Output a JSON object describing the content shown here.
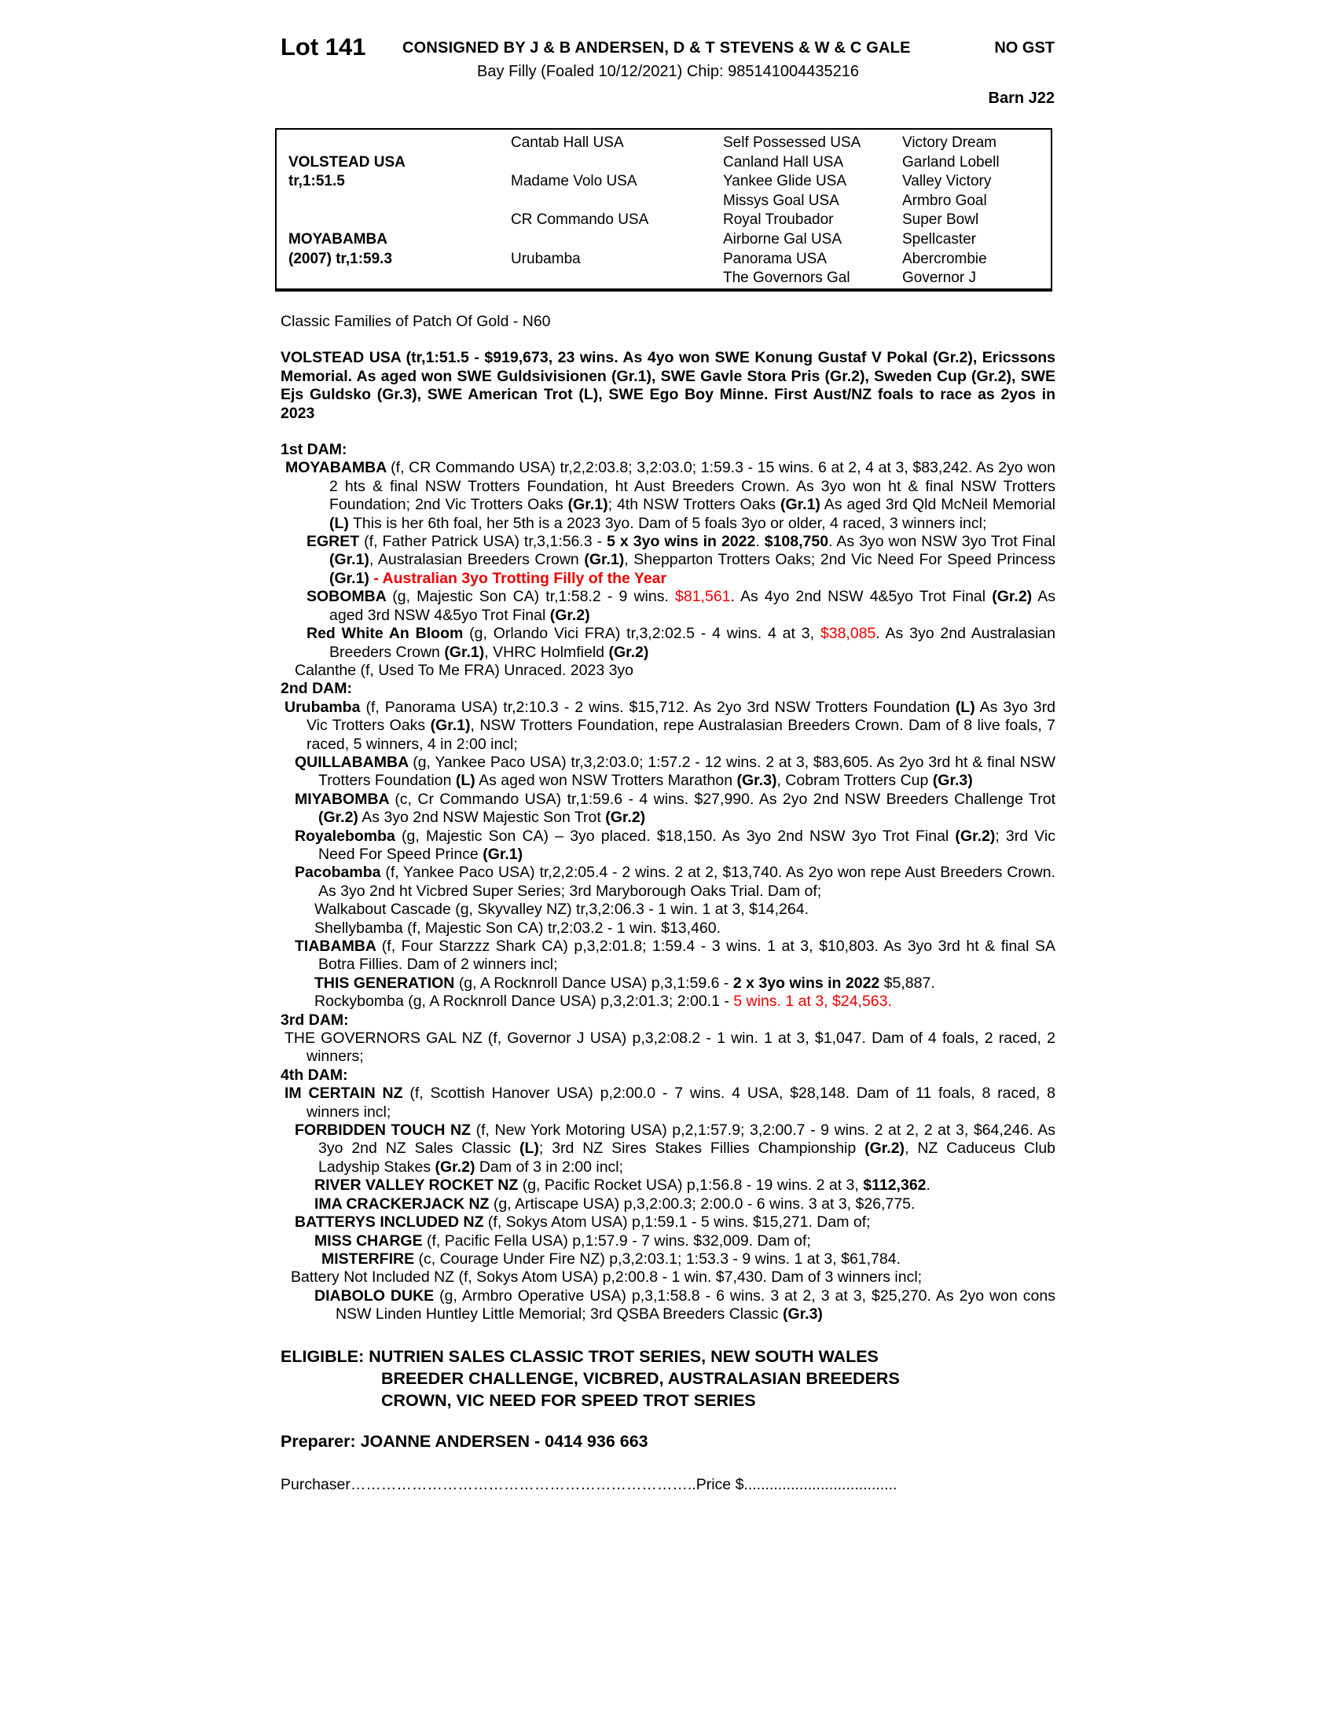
{
  "colors": {
    "highlight": "#ee0000",
    "ink": "#000000",
    "paper": "#ffffff"
  },
  "header": {
    "lot": "Lot 141",
    "consignor": "CONSIGNED BY J & B ANDERSEN, D & T STEVENS & W  & C GALE",
    "gst": "NO GST",
    "description": "Bay Filly (Foaled 10/12/2021) Chip: 985141004435216",
    "barn": "Barn J22"
  },
  "pedigree_table": {
    "rows": [
      [
        "",
        "Cantab Hall USA",
        "Self Possessed USA",
        "Victory Dream"
      ],
      [
        "VOLSTEAD USA",
        "",
        "Canland Hall USA",
        "Garland Lobell"
      ],
      [
        "tr,1:51.5",
        "Madame Volo USA",
        "Yankee Glide USA",
        "Valley Victory"
      ],
      [
        "",
        "",
        "Missys Goal USA",
        "Armbro Goal"
      ],
      [
        "",
        "CR Commando USA",
        "Royal Troubador",
        "Super Bowl"
      ],
      [
        "MOYABAMBA",
        "",
        "Airborne Gal USA",
        "Spellcaster"
      ],
      [
        "(2007) tr,1:59.3",
        "Urubamba",
        "Panorama USA",
        "Abercrombie"
      ],
      [
        "",
        "",
        "The Governors Gal",
        "Governor J"
      ]
    ]
  },
  "body": [
    {
      "cls": "p-plain",
      "seg": [
        {
          "t": "Classic Families of Patch Of Gold - N60"
        }
      ]
    },
    {
      "cls": "p-sire",
      "seg": [
        {
          "t": "VOLSTEAD USA (tr,1:51.5 - $919,673, 23 wins. As 4yo won SWE Konung Gustaf V Pokal (Gr.2), Ericssons Memorial. As aged won SWE Guldsivisionen (Gr.1), SWE Gavle Stora Pris (Gr.2), Sweden Cup (Gr.2), SWE Ejs Guldsko (Gr.3), SWE American Trot (L), SWE Ego Boy Minne. First Aust/NZ foals to race as 2yos in 2023"
        }
      ]
    },
    {
      "cls": "h-dam first",
      "seg": [
        {
          "t": "1st DAM:"
        }
      ]
    },
    {
      "cls": "p-dam1",
      "seg": [
        {
          "t": "MOYABAMBA ",
          "s": "b"
        },
        {
          "t": "(f, CR Commando USA) tr,2,2:03.8; 3,2:03.0; 1:59.3 - 15 wins. 6 at 2, 4 at 3, $83,242. As 2yo won 2 hts & final NSW Trotters Foundation, ht Aust Breeders Crown. As 3yo won ht & final NSW Trotters Foundation; 2nd Vic Trotters Oaks "
        },
        {
          "t": "(Gr.1)",
          "s": "b"
        },
        {
          "t": "; 4th NSW Trotters Oaks "
        },
        {
          "t": "(Gr.1)",
          "s": "b"
        },
        {
          "t": " As aged 3rd Qld McNeil Memorial "
        },
        {
          "t": "(L)",
          "s": "b"
        },
        {
          "t": " This is her 6th foal, her 5th is a 2023 3yo. Dam of 5 foals 3yo or older, 4 raced, 3 winners incl;"
        }
      ]
    },
    {
      "cls": "p-sub",
      "seg": [
        {
          "t": "EGRET ",
          "s": "b"
        },
        {
          "t": "(f, Father Patrick USA) tr,3,1:56.3 - "
        },
        {
          "t": "5 x 3yo wins in 2022",
          "s": "b"
        },
        {
          "t": ". "
        },
        {
          "t": "$108,750",
          "s": "b"
        },
        {
          "t": ". As 3yo won NSW 3yo Trot Final "
        },
        {
          "t": "(Gr.1)",
          "s": "b"
        },
        {
          "t": ", Australasian Breeders Crown "
        },
        {
          "t": "(Gr.1)",
          "s": "b"
        },
        {
          "t": ", Shepparton Trotters Oaks; 2nd Vic Need For Speed Princess "
        },
        {
          "t": "(Gr.1)",
          "s": "b"
        },
        {
          "t": " "
        },
        {
          "t": "- Australian 3yo Trotting Filly of the Year",
          "s": "rb"
        }
      ]
    },
    {
      "cls": "p-sub",
      "seg": [
        {
          "t": "SOBOMBA ",
          "s": "b"
        },
        {
          "t": "(g, Majestic Son CA) tr,1:58.2 - 9 wins. "
        },
        {
          "t": "$81,561",
          "s": "r"
        },
        {
          "t": ". As 4yo 2nd NSW 4&5yo Trot Final "
        },
        {
          "t": "(Gr.2)",
          "s": "b"
        },
        {
          "t": " As aged 3rd NSW 4&5yo Trot Final "
        },
        {
          "t": "(Gr.2)",
          "s": "b"
        }
      ]
    },
    {
      "cls": "p-sub",
      "seg": [
        {
          "t": "Red White An Bloom ",
          "s": "b"
        },
        {
          "t": "(g, Orlando Vici FRA) tr,3,2:02.5 - 4 wins. 4 at 3, "
        },
        {
          "t": "$38,085",
          "s": "r"
        },
        {
          "t": ". As 3yo 2nd Australasian Breeders Crown "
        },
        {
          "t": "(Gr.1)",
          "s": "b"
        },
        {
          "t": ", VHRC Holmfield "
        },
        {
          "t": "(Gr.2)",
          "s": "b"
        }
      ]
    },
    {
      "cls": "p-cal",
      "seg": [
        {
          "t": "Calanthe (f, Used To Me FRA) Unraced. 2023 3yo"
        }
      ]
    },
    {
      "cls": "h-dam",
      "seg": [
        {
          "t": "2nd DAM:"
        }
      ]
    },
    {
      "cls": "p-dam2",
      "seg": [
        {
          "t": "Urubamba ",
          "s": "b"
        },
        {
          "t": "(f, Panorama USA) tr,2:10.3 - 2 wins. $15,712. As 2yo 3rd NSW Trotters Foundation "
        },
        {
          "t": "(L)",
          "s": "b"
        },
        {
          "t": " As 3yo 3rd Vic Trotters Oaks "
        },
        {
          "t": "(Gr.1)",
          "s": "b"
        },
        {
          "t": ", NSW Trotters Foundation, repe Australasian Breeders Crown. Dam of 8 live foals, 7 raced, 5 winners, 4 in 2:00 incl;"
        }
      ]
    },
    {
      "cls": "p-sub2",
      "seg": [
        {
          "t": "QUILLABAMBA ",
          "s": "b"
        },
        {
          "t": "(g, Yankee Paco USA) tr,3,2:03.0; 1:57.2 - 12 wins. 2 at 3, $83,605. As 2yo 3rd ht & final NSW Trotters Foundation "
        },
        {
          "t": "(L)",
          "s": "b"
        },
        {
          "t": " As aged won NSW Trotters Marathon "
        },
        {
          "t": "(Gr.3)",
          "s": "b"
        },
        {
          "t": ", Cobram Trotters Cup "
        },
        {
          "t": "(Gr.3)",
          "s": "b"
        }
      ]
    },
    {
      "cls": "p-sub2",
      "seg": [
        {
          "t": "MIYABOMBA ",
          "s": "b"
        },
        {
          "t": "(c, Cr Commando USA) tr,1:59.6 - 4 wins. $27,990. As 2yo 2nd NSW Breeders Challenge Trot "
        },
        {
          "t": "(Gr.2)",
          "s": "b"
        },
        {
          "t": " As 3yo 2nd NSW Majestic Son Trot "
        },
        {
          "t": "(Gr.2)",
          "s": "b"
        }
      ]
    },
    {
      "cls": "p-sub2",
      "seg": [
        {
          "t": "Royalebomba ",
          "s": "b"
        },
        {
          "t": "(g, Majestic Son CA) – 3yo placed. $18,150. As 3yo 2nd NSW 3yo Trot Final "
        },
        {
          "t": "(Gr.2)",
          "s": "b"
        },
        {
          "t": "; 3rd Vic Need For Speed Prince "
        },
        {
          "t": "(Gr.1)",
          "s": "b"
        }
      ]
    },
    {
      "cls": "p-sub2",
      "seg": [
        {
          "t": "Pacobamba ",
          "s": "b"
        },
        {
          "t": "(f, Yankee Paco USA) tr,2,2:05.4 - 2 wins. 2 at 2, $13,740. As 2yo won repe Aust Breeders Crown. As 3yo 2nd ht Vicbred Super Series; 3rd Maryborough Oaks Trial. Dam of;"
        }
      ]
    },
    {
      "cls": "p-sub3",
      "seg": [
        {
          "t": "Walkabout Cascade (g, Skyvalley NZ) tr,3,2:06.3 - 1 win. 1 at 3, $14,264."
        }
      ]
    },
    {
      "cls": "p-sub3",
      "seg": [
        {
          "t": "Shellybamba (f, Majestic Son CA) tr,2:03.2 - 1 win. $13,460."
        }
      ]
    },
    {
      "cls": "p-sub2",
      "seg": [
        {
          "t": "TIABAMBA ",
          "s": "b"
        },
        {
          "t": "(f, Four Starzzz Shark CA) p,3,2:01.8; 1:59.4 - 3 wins. 1 at 3, $10,803. As 3yo 3rd ht & final SA Botra Fillies. Dam of 2 winners incl;"
        }
      ]
    },
    {
      "cls": "p-sub3",
      "seg": [
        {
          "t": "THIS GENERATION ",
          "s": "b"
        },
        {
          "t": "(g, A Rocknroll Dance USA) p,3,1:59.6 - "
        },
        {
          "t": "2 x 3yo wins in 2022",
          "s": "b"
        },
        {
          "t": " $5,887."
        }
      ]
    },
    {
      "cls": "p-sub3",
      "seg": [
        {
          "t": "Rockybomba (g, A Rocknroll Dance USA) p,3,2:01.3; 2:00.1 - "
        },
        {
          "t": "5 wins. 1 at 3, $24,563.",
          "s": "r"
        }
      ]
    },
    {
      "cls": "h-dam",
      "seg": [
        {
          "t": "3rd DAM:"
        }
      ]
    },
    {
      "cls": "p-dam2",
      "seg": [
        {
          "t": "THE GOVERNORS GAL NZ (f, Governor J USA) p,3,2:08.2 - 1 win. 1 at 3, $1,047. Dam of 4 foals, 2 raced, 2 winners;"
        }
      ]
    },
    {
      "cls": "h-dam",
      "seg": [
        {
          "t": "4th DAM:"
        }
      ]
    },
    {
      "cls": "p-dam2",
      "seg": [
        {
          "t": "IM CERTAIN NZ ",
          "s": "b"
        },
        {
          "t": "(f, Scottish Hanover USA) p,2:00.0 - 7 wins. 4 USA, $28,148. Dam of 11 foals, 8 raced, 8 winners incl;"
        }
      ]
    },
    {
      "cls": "p-sub2",
      "seg": [
        {
          "t": "FORBIDDEN TOUCH NZ ",
          "s": "b"
        },
        {
          "t": "(f, New York Motoring USA) p,2,1:57.9; 3,2:00.7 - 9 wins. 2 at 2, 2 at 3, $64,246. As 3yo 2nd NZ Sales Classic "
        },
        {
          "t": "(L)",
          "s": "b"
        },
        {
          "t": "; 3rd NZ Sires Stakes Fillies Championship "
        },
        {
          "t": "(Gr.2)",
          "s": "b"
        },
        {
          "t": ", NZ Caduceus Club Ladyship Stakes "
        },
        {
          "t": "(Gr.2)",
          "s": "b"
        },
        {
          "t": " Dam of 3 in 2:00 incl;"
        }
      ]
    },
    {
      "cls": "p-sub3",
      "seg": [
        {
          "t": "RIVER VALLEY ROCKET NZ ",
          "s": "b"
        },
        {
          "t": "(g, Pacific Rocket USA) p,1:56.8 - 19 wins. 2 at 3, "
        },
        {
          "t": "$112,362",
          "s": "b"
        },
        {
          "t": "."
        }
      ]
    },
    {
      "cls": "p-sub3",
      "seg": [
        {
          "t": "IMA CRACKERJACK NZ ",
          "s": "b"
        },
        {
          "t": "(g, Artiscape USA) p,3,2:00.3; 2:00.0 - 6 wins. 3 at 3, $26,775."
        }
      ]
    },
    {
      "cls": "p-sub2",
      "seg": [
        {
          "t": "BATTERYS INCLUDED NZ ",
          "s": "b"
        },
        {
          "t": "(f, Sokys Atom USA) p,1:59.1 - 5 wins. $15,271. Dam of;"
        }
      ]
    },
    {
      "cls": "p-sub3",
      "seg": [
        {
          "t": "MISS CHARGE ",
          "s": "b"
        },
        {
          "t": "(f, Pacific Fella USA) p,1:57.9 - 7 wins. $32,009. Dam of;"
        }
      ]
    },
    {
      "cls": "p-sub4",
      "seg": [
        {
          "t": "MISTERFIRE ",
          "s": "b"
        },
        {
          "t": "(c, Courage Under Fire NZ) p,3,2:03.1; 1:53.3 - 9 wins. 1 at 3, $61,784."
        }
      ]
    },
    {
      "cls": "p-batt",
      "seg": [
        {
          "t": "Battery Not Included NZ (f, Sokys Atom USA) p,2:00.8 - 1 win. $7,430. Dam of 3 winners incl;"
        }
      ]
    },
    {
      "cls": "p-sub3",
      "seg": [
        {
          "t": "DIABOLO DUKE ",
          "s": "b"
        },
        {
          "t": "(g, Armbro Operative USA) p,3,1:58.8 - 6 wins. 3 at 2, 3 at 3, $25,270. As 2yo won cons NSW Linden Huntley Little Memorial; 3rd QSBA Breeders Classic "
        },
        {
          "t": "(Gr.3)",
          "s": "b"
        }
      ]
    }
  ],
  "eligible": {
    "lines": [
      "ELIGIBLE: NUTRIEN SALES CLASSIC TROT SERIES, NEW SOUTH WALES",
      "BREEDER CHALLENGE, VICBRED, AUSTRALASIAN BREEDERS",
      "CROWN, VIC NEED FOR SPEED TROT SERIES"
    ]
  },
  "preparer": "Preparer: JOANNE ANDERSEN - 0414 936 663",
  "purchaser_line": {
    "purchaser_label": "Purchaser",
    "leader1": "…………………………………………………………..",
    "price_label": "Price $",
    "leader2": "...................................."
  }
}
